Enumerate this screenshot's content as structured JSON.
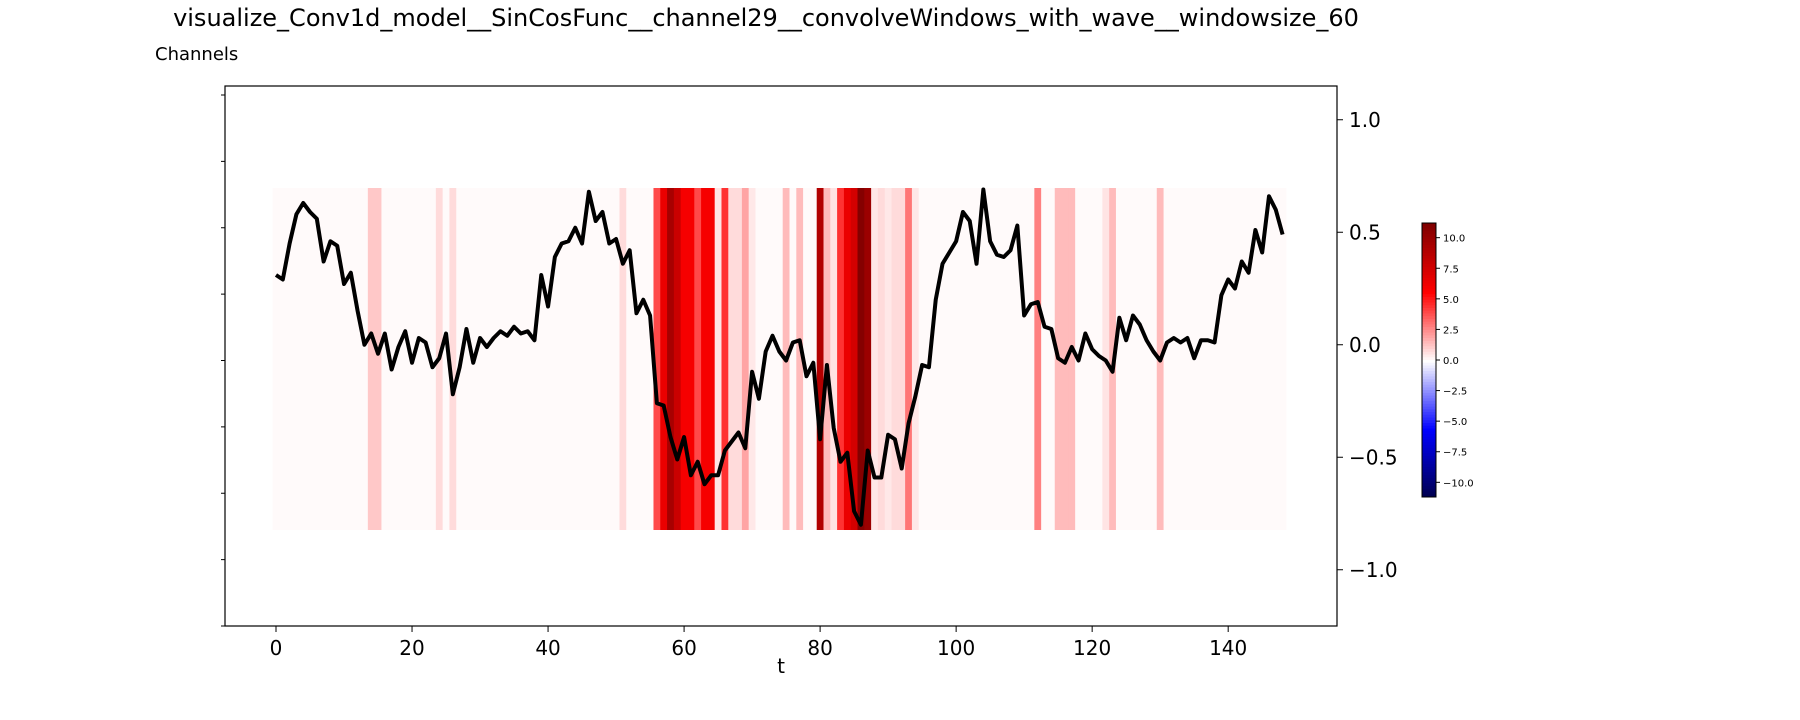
{
  "chart_data": {
    "type": "line",
    "title": "visualize_Conv1d_model__SinCosFunc__channel29__convolveWindows_with_wave__windowsize_60",
    "subtitle": "Channels",
    "xlabel": "t",
    "ylabel": "",
    "xlim": [
      -7.5,
      156
    ],
    "ylim": [
      -1.25,
      1.15
    ],
    "x_ticks": [
      0,
      20,
      40,
      60,
      80,
      100,
      120,
      140
    ],
    "y_ticks": [
      -1.0,
      -0.5,
      0.0,
      0.5,
      1.0
    ],
    "y_tick_labels": [
      "−1.0",
      "−0.5",
      "0.0",
      "0.5",
      "1.0"
    ],
    "grid": false,
    "line_color": "#000000",
    "series": [
      {
        "name": "",
        "values": [
          0.31,
          0.29,
          0.45,
          0.58,
          0.63,
          0.59,
          0.56,
          0.37,
          0.46,
          0.44,
          0.27,
          0.32,
          0.15,
          0.0,
          0.05,
          -0.04,
          0.05,
          -0.11,
          -0.01,
          0.06,
          -0.08,
          0.03,
          0.01,
          -0.1,
          -0.06,
          0.05,
          -0.22,
          -0.1,
          0.07,
          -0.08,
          0.03,
          -0.01,
          0.03,
          0.06,
          0.04,
          0.08,
          0.05,
          0.06,
          0.02,
          0.31,
          0.17,
          0.39,
          0.45,
          0.46,
          0.52,
          0.45,
          0.68,
          0.55,
          0.59,
          0.45,
          0.47,
          0.36,
          0.42,
          0.14,
          0.2,
          0.13,
          -0.26,
          -0.27,
          -0.41,
          -0.51,
          -0.41,
          -0.58,
          -0.52,
          -0.62,
          -0.58,
          -0.58,
          -0.47,
          -0.43,
          -0.39,
          -0.46,
          -0.12,
          -0.24,
          -0.03,
          0.04,
          -0.03,
          -0.07,
          0.01,
          0.02,
          -0.14,
          -0.08,
          -0.42,
          -0.09,
          -0.37,
          -0.52,
          -0.48,
          -0.74,
          -0.8,
          -0.47,
          -0.59,
          -0.59,
          -0.4,
          -0.42,
          -0.55,
          -0.35,
          -0.23,
          -0.09,
          -0.1,
          0.2,
          0.36,
          0.41,
          0.46,
          0.59,
          0.55,
          0.36,
          0.69,
          0.46,
          0.4,
          0.39,
          0.42,
          0.53,
          0.13,
          0.18,
          0.19,
          0.08,
          0.07,
          -0.06,
          -0.08,
          -0.01,
          -0.07,
          0.05,
          -0.02,
          -0.05,
          -0.07,
          -0.12,
          0.12,
          0.02,
          0.13,
          0.09,
          0.02,
          -0.03,
          -0.07,
          0.01,
          0.03,
          0.01,
          0.03,
          -0.06,
          0.02,
          0.02,
          0.01,
          0.22,
          0.29,
          0.25,
          0.37,
          0.32,
          0.51,
          0.41,
          0.66,
          0.6,
          0.49
        ]
      }
    ],
    "heatmap": {
      "x_start": 0,
      "cmap": "seismic",
      "default_value": 0.1,
      "value_ranges": [
        {
          "from": 14,
          "to": 15,
          "value": 1.2
        },
        {
          "from": 24,
          "to": 24,
          "value": 0.8
        },
        {
          "from": 26,
          "to": 26,
          "value": 0.8
        },
        {
          "from": 51,
          "to": 51,
          "value": 0.8
        },
        {
          "from": 56,
          "to": 56,
          "value": 4.0
        },
        {
          "from": 57,
          "to": 57,
          "value": 6.5
        },
        {
          "from": 58,
          "to": 58,
          "value": 9.5
        },
        {
          "from": 59,
          "to": 59,
          "value": 8.0
        },
        {
          "from": 60,
          "to": 61,
          "value": 6.0
        },
        {
          "from": 62,
          "to": 62,
          "value": 4.0
        },
        {
          "from": 63,
          "to": 64,
          "value": 6.0
        },
        {
          "from": 65,
          "to": 65,
          "value": 0.6
        },
        {
          "from": 66,
          "to": 66,
          "value": 4.5
        },
        {
          "from": 67,
          "to": 68,
          "value": 0.8
        },
        {
          "from": 69,
          "to": 69,
          "value": 2.0
        },
        {
          "from": 70,
          "to": 70,
          "value": 0.5
        },
        {
          "from": 75,
          "to": 75,
          "value": 1.5
        },
        {
          "from": 77,
          "to": 77,
          "value": 1.5
        },
        {
          "from": 80,
          "to": 80,
          "value": 9.0
        },
        {
          "from": 81,
          "to": 81,
          "value": 1.5
        },
        {
          "from": 82,
          "to": 82,
          "value": 0.6
        },
        {
          "from": 83,
          "to": 83,
          "value": 4.5
        },
        {
          "from": 84,
          "to": 84,
          "value": 6.5
        },
        {
          "from": 85,
          "to": 85,
          "value": 7.5
        },
        {
          "from": 86,
          "to": 86,
          "value": 11.0
        },
        {
          "from": 87,
          "to": 87,
          "value": 10.0
        },
        {
          "from": 88,
          "to": 88,
          "value": 0.5
        },
        {
          "from": 89,
          "to": 89,
          "value": 0.8
        },
        {
          "from": 90,
          "to": 90,
          "value": 0.5
        },
        {
          "from": 91,
          "to": 92,
          "value": 0.8
        },
        {
          "from": 93,
          "to": 93,
          "value": 3.0
        },
        {
          "from": 94,
          "to": 94,
          "value": 0.5
        },
        {
          "from": 112,
          "to": 112,
          "value": 2.8
        },
        {
          "from": 115,
          "to": 117,
          "value": 1.5
        },
        {
          "from": 122,
          "to": 122,
          "value": 0.6
        },
        {
          "from": 123,
          "to": 123,
          "value": 1.5
        },
        {
          "from": 130,
          "to": 130,
          "value": 1.5
        }
      ]
    },
    "colorbar": {
      "range": [
        -11.2,
        11.2
      ],
      "ticks": [
        -10.0,
        -7.5,
        -5.0,
        -2.5,
        0.0,
        2.5,
        5.0,
        7.5,
        10.0
      ],
      "tick_labels": [
        "−10.0",
        "−7.5",
        "−5.0",
        "−2.5",
        "0.0",
        "2.5",
        "5.0",
        "7.5",
        "10.0"
      ],
      "placement": "right"
    }
  }
}
